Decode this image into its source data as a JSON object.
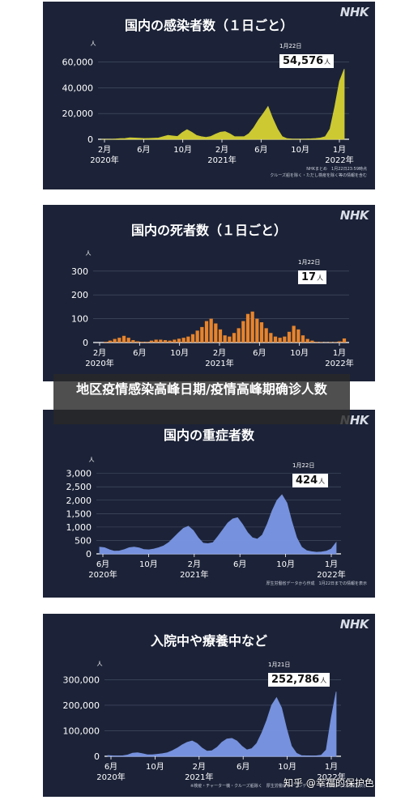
{
  "page": {
    "banner_title": "地区疫情感染高峰日期/疫情高峰期确诊人数",
    "watermark": "知乎 @幸福的保护色",
    "logo": "NHK"
  },
  "chart_data": [
    {
      "type": "area",
      "title": "国内の感染者数（１日ごと）",
      "unit_mark": "人",
      "color": "#d6d232",
      "yticks": [
        "0",
        "20,000",
        "40,000",
        "60,000"
      ],
      "ylim": [
        0,
        68000
      ],
      "xticks": [
        {
          "label": "2月",
          "sub": "2020年"
        },
        {
          "label": "6月",
          "sub": ""
        },
        {
          "label": "10月",
          "sub": ""
        },
        {
          "label": "2月",
          "sub": "2021年"
        },
        {
          "label": "6月",
          "sub": ""
        },
        {
          "label": "10月",
          "sub": ""
        },
        {
          "label": "1月",
          "sub": "2022年"
        }
      ],
      "callout": {
        "date": "1月22日",
        "value": "54,576",
        "unit": "人"
      },
      "source": "NHKまとめ　1月22日23:59時点\nクルーズ船を除く・ただし検疫を除く等の情報を含む",
      "series": [
        {
          "values": [
            0,
            0,
            0,
            200,
            500,
            600,
            1200,
            1000,
            900,
            600,
            700,
            800,
            1000,
            2000,
            3000,
            2600,
            2200,
            5200,
            7500,
            5500,
            3000,
            2000,
            1500,
            2200,
            4000,
            5500,
            6000,
            4300,
            2000,
            2000,
            2100,
            4500,
            9000,
            15000,
            20000,
            25500,
            16000,
            8000,
            2000,
            500,
            200,
            100,
            150,
            250,
            400,
            600,
            1000,
            2000,
            8000,
            25000,
            45000,
            54576
          ]
        }
      ]
    },
    {
      "type": "bar",
      "title": "国内の死者数（１日ごと）",
      "unit_mark": "人",
      "color": "#e8842b",
      "yticks": [
        "0",
        "100",
        "200",
        "300"
      ],
      "ylim": [
        0,
        340
      ],
      "xticks": [
        {
          "label": "2月",
          "sub": "2020年"
        },
        {
          "label": "6月",
          "sub": ""
        },
        {
          "label": "10月",
          "sub": ""
        },
        {
          "label": "2月",
          "sub": "2021年"
        },
        {
          "label": "6月",
          "sub": ""
        },
        {
          "label": "10月",
          "sub": ""
        },
        {
          "label": "1月",
          "sub": "2022年"
        }
      ],
      "callout": {
        "date": "1月22日",
        "value": "17",
        "unit": "人"
      },
      "source": "",
      "series": [
        {
          "values": [
            0,
            0,
            3,
            8,
            15,
            20,
            28,
            20,
            10,
            5,
            3,
            3,
            8,
            12,
            12,
            10,
            8,
            12,
            16,
            20,
            25,
            35,
            50,
            65,
            90,
            100,
            80,
            55,
            30,
            25,
            40,
            60,
            90,
            120,
            130,
            100,
            85,
            60,
            40,
            25,
            20,
            25,
            45,
            70,
            55,
            30,
            15,
            8,
            3,
            2,
            1,
            2,
            2,
            5,
            17
          ]
        }
      ]
    },
    {
      "type": "area",
      "title": "国内の重症者数",
      "unit_mark": "人",
      "color": "#7b97e6",
      "yticks": [
        "0",
        "500",
        "1,000",
        "1,500",
        "2,000",
        "2,500",
        "3,000"
      ],
      "ylim": [
        0,
        3200
      ],
      "xticks": [
        {
          "label": "6月",
          "sub": "2020年"
        },
        {
          "label": "10月",
          "sub": ""
        },
        {
          "label": "2月",
          "sub": "2021年"
        },
        {
          "label": "6月",
          "sub": ""
        },
        {
          "label": "10月",
          "sub": ""
        },
        {
          "label": "1月",
          "sub": "2022年"
        }
      ],
      "callout": {
        "date": "1月22日",
        "value": "424",
        "unit": "人"
      },
      "source": "厚生労働省データから作成　1月22日までの情報を表示",
      "series": [
        {
          "values": [
            250,
            230,
            150,
            100,
            110,
            160,
            230,
            250,
            220,
            160,
            150,
            180,
            230,
            300,
            420,
            600,
            780,
            950,
            1030,
            870,
            600,
            400,
            380,
            420,
            650,
            900,
            1150,
            1300,
            1350,
            1100,
            800,
            600,
            550,
            700,
            1100,
            1600,
            2000,
            2200,
            1900,
            1200,
            600,
            250,
            120,
            80,
            60,
            70,
            100,
            180,
            424
          ]
        }
      ]
    },
    {
      "type": "area",
      "title": "入院中や療養中など",
      "unit_mark": "人",
      "color": "#7b97e6",
      "yticks": [
        "0",
        "100,000",
        "200,000",
        "300,000"
      ],
      "ylim": [
        0,
        330000
      ],
      "xticks": [
        {
          "label": "6月",
          "sub": "2020年"
        },
        {
          "label": "10月",
          "sub": ""
        },
        {
          "label": "2月",
          "sub": "2021年"
        },
        {
          "label": "6月",
          "sub": ""
        },
        {
          "label": "10月",
          "sub": ""
        },
        {
          "label": "1月",
          "sub": "2022年"
        }
      ],
      "callout": {
        "date": "1月21日",
        "value": "252,786",
        "unit": "人"
      },
      "source": "※検疫・チャーター機・クルーズ船除く　厚生労働省オープンデータ　1月21日までの情報を表示",
      "series": [
        {
          "values": [
            3000,
            2000,
            1500,
            2000,
            5000,
            12000,
            14000,
            10000,
            6000,
            6000,
            8000,
            10000,
            14000,
            22000,
            32000,
            45000,
            55000,
            60000,
            50000,
            32000,
            20000,
            22000,
            35000,
            55000,
            68000,
            70000,
            60000,
            40000,
            25000,
            30000,
            50000,
            90000,
            140000,
            200000,
            230000,
            190000,
            110000,
            40000,
            12000,
            3000,
            2000,
            1500,
            2000,
            4000,
            25000,
            150000,
            252786
          ]
        }
      ]
    }
  ]
}
